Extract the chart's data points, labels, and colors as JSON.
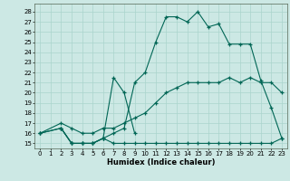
{
  "xlabel": "Humidex (Indice chaleur)",
  "bg_color": "#cce8e4",
  "grid_color": "#aad4cc",
  "line_color": "#006655",
  "xlim": [
    -0.5,
    23.5
  ],
  "ylim": [
    14.5,
    28.8
  ],
  "xticks": [
    0,
    1,
    2,
    3,
    4,
    5,
    6,
    7,
    8,
    9,
    10,
    11,
    12,
    13,
    14,
    15,
    16,
    17,
    18,
    19,
    20,
    21,
    22,
    23
  ],
  "yticks": [
    15,
    16,
    17,
    18,
    19,
    20,
    21,
    22,
    23,
    24,
    25,
    26,
    27,
    28
  ],
  "line_top_x": [
    0,
    2,
    3,
    4,
    5,
    6,
    7,
    8,
    9,
    10,
    11,
    12,
    13,
    14,
    15,
    16,
    17,
    18,
    19,
    20,
    21,
    22,
    23
  ],
  "line_top_y": [
    16,
    16.5,
    15,
    15,
    15,
    15.5,
    16,
    16.5,
    21,
    22,
    25,
    27.5,
    27.5,
    27,
    28,
    26.5,
    26.8,
    24.8,
    24.8,
    24.8,
    21.2,
    18.5,
    15.5
  ],
  "line_mid_x": [
    0,
    2,
    3,
    4,
    5,
    6,
    7,
    8,
    9,
    10,
    11,
    12,
    13,
    14,
    15,
    16,
    17,
    18,
    19,
    20,
    21,
    22,
    23
  ],
  "line_mid_y": [
    16,
    17,
    16.5,
    16,
    16,
    16.5,
    16.5,
    17,
    17.5,
    18,
    19,
    20,
    20.5,
    21,
    21,
    21,
    21,
    21.5,
    21,
    21.5,
    21,
    21,
    20
  ],
  "line_bot_x": [
    0,
    2,
    3,
    4,
    5,
    6,
    7,
    8,
    9,
    10,
    11,
    12,
    13,
    14,
    15,
    16,
    17,
    18,
    19,
    20,
    21,
    22,
    23
  ],
  "line_bot_y": [
    16,
    16.5,
    15,
    15,
    15,
    15.5,
    15,
    15,
    15,
    15,
    15,
    15,
    15,
    15,
    15,
    15,
    15,
    15,
    15,
    15,
    15,
    15,
    15.5
  ],
  "line_spike_x": [
    2,
    3,
    4,
    5,
    6,
    7,
    8,
    9
  ],
  "line_spike_y": [
    16.5,
    15,
    15,
    15,
    15.5,
    21.5,
    20,
    16
  ]
}
